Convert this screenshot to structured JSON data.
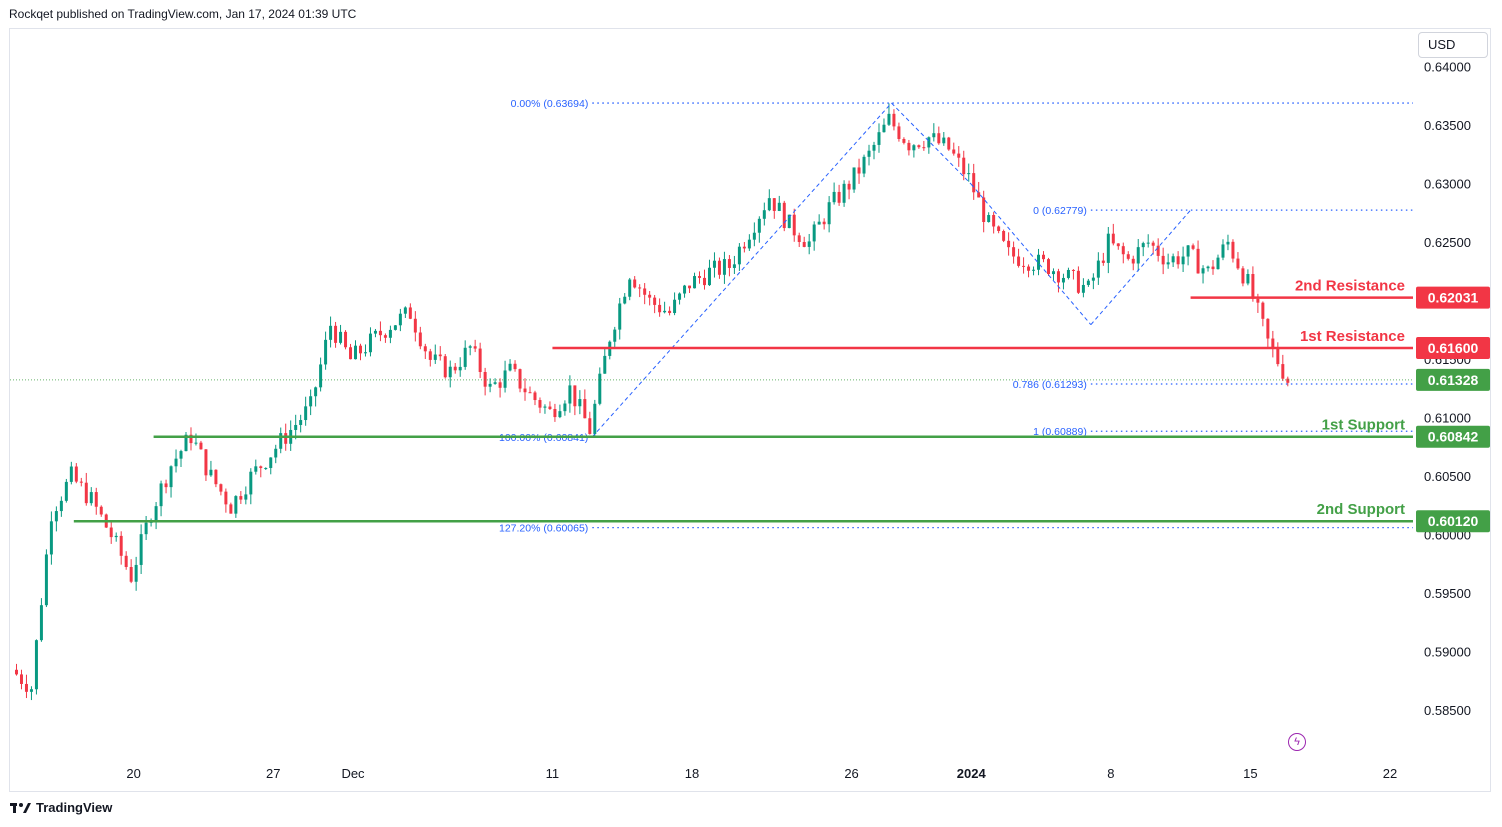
{
  "header": {
    "attribution": "Rockqet published on TradingView.com, Jan 17, 2024 01:39 UTC"
  },
  "currency": "USD",
  "footer": {
    "brand": "TradingView",
    "logo_icon": "tradingview-logo-icon"
  },
  "colors": {
    "bull": "#089981",
    "bear": "#f23645",
    "resistance": "#f23645",
    "support": "#43a047",
    "fib": "#2962ff",
    "grid_text": "#131722"
  },
  "chart_data": {
    "type": "candlestick",
    "symbol_currency": "USD",
    "ylim": [
      0.5825,
      0.6425
    ],
    "y_ticks": [
      "0.64000",
      "0.63500",
      "0.63000",
      "0.62500",
      "0.62000",
      "0.61500",
      "0.61000",
      "0.60500",
      "0.60000",
      "0.59500",
      "0.59000",
      "0.58500"
    ],
    "x_ticks": [
      {
        "label": "20",
        "date": "2023-11-20"
      },
      {
        "label": "27",
        "date": "2023-11-27"
      },
      {
        "label": "Dec",
        "date": "2023-12-01"
      },
      {
        "label": "11",
        "date": "2023-12-11"
      },
      {
        "label": "18",
        "date": "2023-12-18"
      },
      {
        "label": "26",
        "date": "2023-12-26"
      },
      {
        "label": "2024",
        "date": "2024-01-01",
        "bold": true
      },
      {
        "label": "8",
        "date": "2024-01-08"
      },
      {
        "label": "15",
        "date": "2024-01-15"
      },
      {
        "label": "22",
        "date": "2024-01-22"
      }
    ],
    "x_range": [
      "2023-11-14",
      "2024-01-22"
    ],
    "price_path": [
      {
        "date": "2023-11-14",
        "price": 0.5885
      },
      {
        "date": "2023-11-15",
        "price": 0.587
      },
      {
        "date": "2023-11-16",
        "price": 0.602
      },
      {
        "date": "2023-11-17",
        "price": 0.605
      },
      {
        "date": "2023-11-18",
        "price": 0.603
      },
      {
        "date": "2023-11-19",
        "price": 0.6
      },
      {
        "date": "2023-11-20",
        "price": 0.5965
      },
      {
        "date": "2023-11-21",
        "price": 0.602
      },
      {
        "date": "2023-11-22",
        "price": 0.606
      },
      {
        "date": "2023-11-23",
        "price": 0.6085
      },
      {
        "date": "2023-11-24",
        "price": 0.605
      },
      {
        "date": "2023-11-25",
        "price": 0.6025
      },
      {
        "date": "2023-11-26",
        "price": 0.605
      },
      {
        "date": "2023-11-27",
        "price": 0.607
      },
      {
        "date": "2023-11-28",
        "price": 0.609
      },
      {
        "date": "2023-11-29",
        "price": 0.611
      },
      {
        "date": "2023-11-30",
        "price": 0.618
      },
      {
        "date": "2023-12-01",
        "price": 0.615
      },
      {
        "date": "2023-12-02",
        "price": 0.6165
      },
      {
        "date": "2023-12-03",
        "price": 0.618
      },
      {
        "date": "2023-12-04",
        "price": 0.619
      },
      {
        "date": "2023-12-05",
        "price": 0.615
      },
      {
        "date": "2023-12-06",
        "price": 0.614
      },
      {
        "date": "2023-12-07",
        "price": 0.616
      },
      {
        "date": "2023-12-08",
        "price": 0.6125
      },
      {
        "date": "2023-12-09",
        "price": 0.614
      },
      {
        "date": "2023-12-10",
        "price": 0.612
      },
      {
        "date": "2023-12-11",
        "price": 0.6105
      },
      {
        "date": "2023-12-12",
        "price": 0.6125
      },
      {
        "date": "2023-12-13",
        "price": 0.609
      },
      {
        "date": "2023-12-14",
        "price": 0.617
      },
      {
        "date": "2023-12-15",
        "price": 0.6225
      },
      {
        "date": "2023-12-16",
        "price": 0.62
      },
      {
        "date": "2023-12-17",
        "price": 0.619
      },
      {
        "date": "2023-12-18",
        "price": 0.6215
      },
      {
        "date": "2023-12-19",
        "price": 0.6225
      },
      {
        "date": "2023-12-20",
        "price": 0.623
      },
      {
        "date": "2023-12-21",
        "price": 0.626
      },
      {
        "date": "2023-12-22",
        "price": 0.629
      },
      {
        "date": "2023-12-23",
        "price": 0.6265
      },
      {
        "date": "2023-12-24",
        "price": 0.625
      },
      {
        "date": "2023-12-25",
        "price": 0.628
      },
      {
        "date": "2023-12-26",
        "price": 0.63
      },
      {
        "date": "2023-12-27",
        "price": 0.6325
      },
      {
        "date": "2023-12-28",
        "price": 0.6355
      },
      {
        "date": "2023-12-29",
        "price": 0.6335
      },
      {
        "date": "2023-12-30",
        "price": 0.634
      },
      {
        "date": "2023-12-31",
        "price": 0.633
      },
      {
        "date": "2024-01-01",
        "price": 0.6305
      },
      {
        "date": "2024-01-02",
        "price": 0.6265
      },
      {
        "date": "2024-01-03",
        "price": 0.624
      },
      {
        "date": "2024-01-04",
        "price": 0.6235
      },
      {
        "date": "2024-01-05",
        "price": 0.623
      },
      {
        "date": "2024-01-06",
        "price": 0.622
      },
      {
        "date": "2024-01-07",
        "price": 0.621
      },
      {
        "date": "2024-01-08",
        "price": 0.625
      },
      {
        "date": "2024-01-09",
        "price": 0.6235
      },
      {
        "date": "2024-01-10",
        "price": 0.625
      },
      {
        "date": "2024-01-11",
        "price": 0.6235
      },
      {
        "date": "2024-01-12",
        "price": 0.624
      },
      {
        "date": "2024-01-13",
        "price": 0.6225
      },
      {
        "date": "2024-01-14",
        "price": 0.625
      },
      {
        "date": "2024-01-15",
        "price": 0.6215
      },
      {
        "date": "2024-01-16",
        "price": 0.6165
      },
      {
        "date": "2024-01-17",
        "price": 0.6133
      }
    ],
    "levels": [
      {
        "name": "2nd Resistance",
        "value": 0.62031,
        "label": "0.62031",
        "color": "#f23645",
        "from_date": "2024-01-12"
      },
      {
        "name": "1st Resistance",
        "value": 0.616,
        "label": "0.61600",
        "color": "#f23645",
        "from_date": "2023-12-11"
      },
      {
        "name": "1st Support",
        "value": 0.60842,
        "label": "0.60842",
        "color": "#43a047",
        "from_date": "2023-11-21"
      },
      {
        "name": "2nd Support",
        "value": 0.6012,
        "label": "0.60120",
        "color": "#43a047",
        "from_date": "2023-11-17"
      }
    ],
    "current_price": {
      "value": 0.61328,
      "label": "0.61328",
      "color": "#43a047"
    },
    "fib_labels": [
      {
        "text": "0.00% (0.63694)",
        "value": 0.63694,
        "from_date": "2023-12-13"
      },
      {
        "text": "100.00% (0.60841)",
        "value": 0.60841,
        "from_date": "2023-12-13"
      },
      {
        "text": "127.20% (0.60065)",
        "value": 0.60065,
        "from_date": "2023-12-13"
      },
      {
        "text": "0 (0.62779)",
        "value": 0.62779,
        "from_date": "2024-01-07"
      },
      {
        "text": "0.786 (0.61293)",
        "value": 0.61293,
        "from_date": "2024-01-07"
      },
      {
        "text": "1 (0.60889)",
        "value": 0.60889,
        "from_date": "2024-01-07"
      }
    ],
    "fib_swings": [
      [
        {
          "date": "2023-12-13",
          "price": 0.60841
        },
        {
          "date": "2023-12-28",
          "price": 0.63694
        },
        {
          "date": "2024-01-01",
          "price": 0.63
        }
      ],
      [
        {
          "date": "2024-01-01",
          "price": 0.63
        },
        {
          "date": "2024-01-07",
          "price": 0.618
        },
        {
          "date": "2024-01-12",
          "price": 0.62779
        }
      ]
    ]
  }
}
